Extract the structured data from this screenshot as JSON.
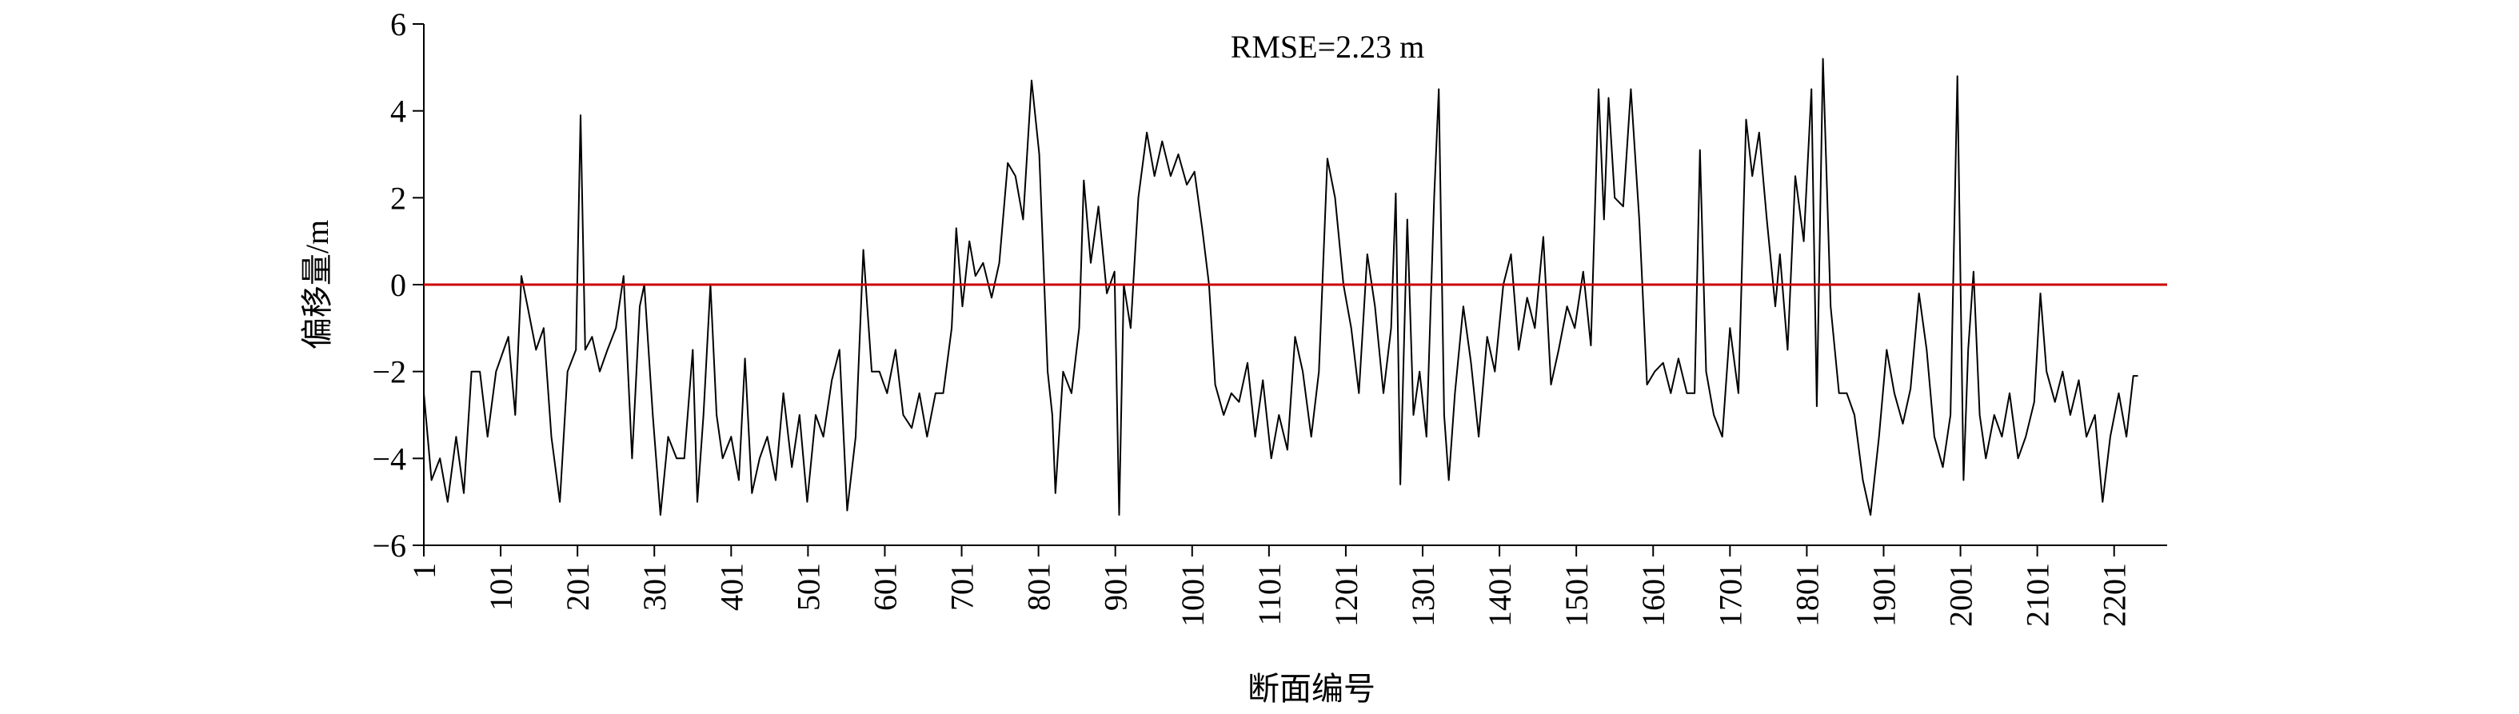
{
  "chart_data": {
    "type": "line",
    "title": "RMSE=2.23 m",
    "xlabel": "断面编号",
    "ylabel": "偏移量/m",
    "x": [
      1,
      11,
      22,
      32,
      43,
      53,
      63,
      74,
      84,
      95,
      105,
      111,
      120,
      128,
      136,
      147,
      157,
      167,
      178,
      188,
      199,
      205,
      211,
      220,
      230,
      240,
      251,
      261,
      272,
      282,
      288,
      299,
      309,
      319,
      330,
      340,
      351,
      357,
      365,
      374,
      382,
      390,
      401,
      411,
      419,
      428,
      438,
      448,
      459,
      469,
      480,
      490,
      500,
      511,
      521,
      532,
      542,
      552,
      563,
      573,
      584,
      594,
      604,
      615,
      625,
      636,
      646,
      656,
      667,
      677,
      688,
      694,
      702,
      711,
      719,
      729,
      740,
      750,
      761,
      771,
      781,
      792,
      802,
      813,
      819,
      823,
      833,
      844,
      854,
      860,
      869,
      879,
      890,
      900,
      906,
      912,
      921,
      931,
      942,
      952,
      962,
      973,
      983,
      994,
      1004,
      1014,
      1023,
      1031,
      1042,
      1052,
      1062,
      1073,
      1083,
      1093,
      1104,
      1114,
      1125,
      1135,
      1145,
      1156,
      1166,
      1177,
      1187,
      1198,
      1208,
      1218,
      1229,
      1239,
      1250,
      1260,
      1266,
      1272,
      1281,
      1289,
      1297,
      1306,
      1316,
      1322,
      1329,
      1335,
      1343,
      1354,
      1364,
      1374,
      1385,
      1395,
      1406,
      1416,
      1426,
      1437,
      1447,
      1458,
      1468,
      1478,
      1489,
      1499,
      1510,
      1520,
      1530,
      1537,
      1543,
      1551,
      1562,
      1572,
      1583,
      1593,
      1603,
      1614,
      1624,
      1634,
      1645,
      1655,
      1662,
      1670,
      1680,
      1691,
      1701,
      1712,
      1722,
      1730,
      1739,
      1749,
      1760,
      1766,
      1776,
      1786,
      1797,
      1807,
      1814,
      1822,
      1832,
      1843,
      1853,
      1863,
      1874,
      1884,
      1895,
      1905,
      1915,
      1926,
      1936,
      1947,
      1957,
      1967,
      1978,
      1988,
      1997,
      2005,
      2011,
      2018,
      2026,
      2034,
      2045,
      2055,
      2065,
      2076,
      2086,
      2097,
      2105,
      2113,
      2124,
      2134,
      2144,
      2155,
      2165,
      2176,
      2186,
      2196,
      2207,
      2217,
      2226,
      2232
    ],
    "series": [
      {
        "name": "偏移量",
        "color": "#000000",
        "values": [
          -2.5,
          -4.5,
          -4,
          -5,
          -3.5,
          -4.8,
          -2,
          -2,
          -3.5,
          -2,
          -1.5,
          -1.2,
          -3,
          0.2,
          -0.5,
          -1.5,
          -1,
          -3.5,
          -5,
          -2,
          -1.5,
          3.9,
          -1.5,
          -1.2,
          -2,
          -1.5,
          -1,
          0.2,
          -4,
          -0.5,
          0,
          -3,
          -5.3,
          -3.5,
          -4,
          -4,
          -1.5,
          -5,
          -3,
          0,
          -3,
          -4,
          -3.5,
          -4.5,
          -1.7,
          -4.8,
          -4,
          -3.5,
          -4.5,
          -2.5,
          -4.2,
          -3,
          -5,
          -3,
          -3.5,
          -2.2,
          -1.5,
          -5.2,
          -3.5,
          0.8,
          -2,
          -2,
          -2.5,
          -1.5,
          -3,
          -3.3,
          -2.5,
          -3.5,
          -2.5,
          -2.5,
          -1,
          1.3,
          -0.5,
          1,
          0.2,
          0.5,
          -0.3,
          0.5,
          2.8,
          2.5,
          1.5,
          4.7,
          3,
          -2,
          -3,
          -4.8,
          -2,
          -2.5,
          -1,
          2.4,
          0.5,
          1.8,
          -0.2,
          0.3,
          -5.3,
          0,
          -1,
          2,
          3.5,
          2.5,
          3.3,
          2.5,
          3,
          2.3,
          2.6,
          1.3,
          0,
          -2.3,
          -3,
          -2.5,
          -2.7,
          -1.8,
          -3.5,
          -2.2,
          -4,
          -3,
          -3.8,
          -1.2,
          -2,
          -3.5,
          -2,
          2.9,
          2,
          0,
          -1,
          -2.5,
          0.7,
          -0.5,
          -2.5,
          -1,
          2.1,
          -4.6,
          1.5,
          -3,
          -2,
          -3.5,
          2,
          4.5,
          -3,
          -4.5,
          -2.5,
          -0.5,
          -1.8,
          -3.5,
          -1.2,
          -2,
          0,
          0.7,
          -1.5,
          -0.3,
          -1,
          1.1,
          -2.3,
          -1.5,
          -0.5,
          -1,
          0.3,
          -1.4,
          4.5,
          1.5,
          4.3,
          2,
          1.8,
          4.5,
          1.5,
          -2.3,
          -2,
          -1.8,
          -2.5,
          -1.7,
          -2.5,
          -2.5,
          3.1,
          -2,
          -3,
          -3.5,
          -1,
          -2.5,
          3.8,
          2.5,
          3.5,
          1.5,
          -0.5,
          0.7,
          -1.5,
          2.5,
          1,
          4.5,
          -2.8,
          5.2,
          -0.5,
          -2.5,
          -2.5,
          -3,
          -4.5,
          -5.3,
          -3.5,
          -1.5,
          -2.5,
          -3.2,
          -2.4,
          -0.2,
          -1.5,
          -3.5,
          -4.2,
          -3,
          4.8,
          -4.5,
          -1.5,
          0.3,
          -3,
          -4,
          -3,
          -3.5,
          -2.5,
          -4,
          -3.5,
          -2.7,
          -0.2,
          -2,
          -2.7,
          -2,
          -3,
          -2.2,
          -3.5,
          -3,
          -5,
          -3.5,
          -2.5,
          -3.5,
          -2.1,
          -2.1
        ]
      }
    ],
    "reference_line": {
      "value": 0,
      "color": "#cc0000"
    },
    "xlim": [
      1,
      2270
    ],
    "xticks": [
      1,
      101,
      201,
      301,
      401,
      501,
      601,
      701,
      801,
      901,
      1001,
      1101,
      1201,
      1301,
      1401,
      1501,
      1601,
      1701,
      1801,
      1901,
      2001,
      2101,
      2201
    ],
    "ylim": [
      -6,
      6
    ],
    "yticks": [
      {
        "value": -6,
        "label": "−6"
      },
      {
        "value": -4,
        "label": "−4"
      },
      {
        "value": -2,
        "label": "−2"
      },
      0,
      2,
      4,
      6
    ]
  }
}
